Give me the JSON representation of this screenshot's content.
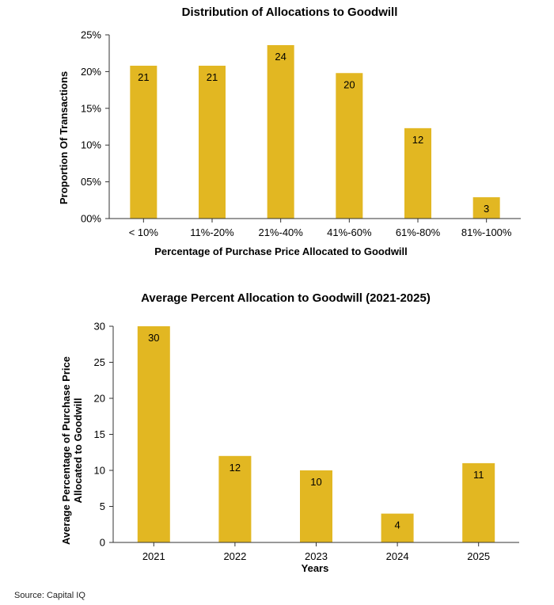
{
  "colors": {
    "bar": "#E2B722",
    "axis": "#333333",
    "text": "#000000"
  },
  "source": "Source: Capital IQ",
  "chart_data": [
    {
      "type": "bar",
      "title": "Distribution of Allocations to Goodwill",
      "xlabel": "Percentage of Purchase Price Allocated to Goodwill",
      "ylabel": "Proportion  Of Transactions",
      "categories": [
        "< 10%",
        "11%-20%",
        "21%-40%",
        "41%-60%",
        "61%-80%",
        "81%-100%"
      ],
      "values": [
        21,
        21,
        24,
        20,
        12,
        3
      ],
      "data_labels": [
        "21",
        "21",
        "24",
        "20",
        "12",
        "3"
      ],
      "heights_percent": [
        20.8,
        20.8,
        23.6,
        19.8,
        12.3,
        2.9
      ],
      "ylim": [
        0,
        25
      ],
      "yticks": [
        "00%",
        "05%",
        "10%",
        "15%",
        "20%",
        "25%"
      ],
      "grid": false,
      "legend": "none"
    },
    {
      "type": "bar",
      "title": "Average Percent Allocation to Goodwill (2021-2025)",
      "xlabel": "Years",
      "ylabel": "Average Percentage of Purchase Price Allocated to Goodwill",
      "ylabel_lines": [
        "Average Percentage of Purchase Price",
        "Allocated to Goodwill"
      ],
      "categories": [
        "2021",
        "2022",
        "2023",
        "2024",
        "2025"
      ],
      "values": [
        30,
        12,
        10,
        4,
        11
      ],
      "data_labels": [
        "30",
        "12",
        "10",
        "4",
        "11"
      ],
      "ylim": [
        0,
        30
      ],
      "yticks": [
        "0",
        "5",
        "10",
        "15",
        "20",
        "25",
        "30"
      ],
      "grid": false,
      "legend": "none"
    }
  ]
}
